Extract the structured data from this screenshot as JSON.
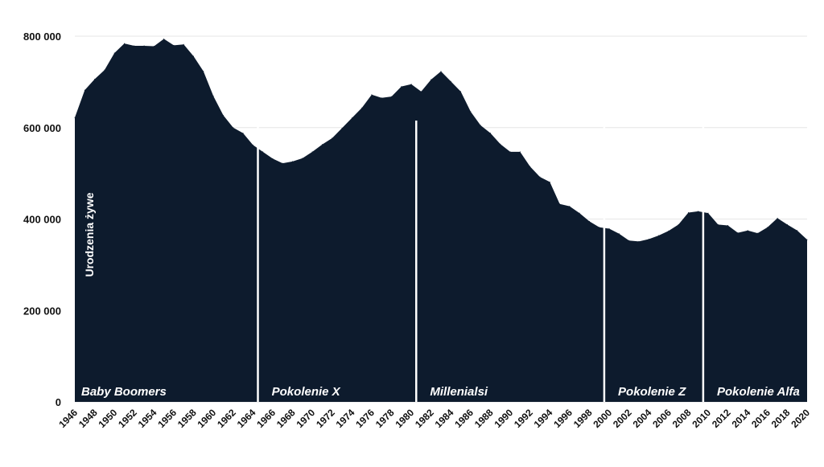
{
  "chart_data": {
    "type": "area",
    "title": "",
    "xlabel": "",
    "ylabel": "Urodzenia żywe",
    "ylim": [
      0,
      800000
    ],
    "xlim": [
      1946,
      2020
    ],
    "grid": true,
    "colors": {
      "area": "#0d1b2d",
      "grid": "#e6e6e6",
      "divider": "#ffffff",
      "text": "#111111"
    },
    "y_ticks": [
      {
        "value": 0,
        "label": "0"
      },
      {
        "value": 200000,
        "label": "200 000"
      },
      {
        "value": 400000,
        "label": "400 000"
      },
      {
        "value": 600000,
        "label": "600 000"
      },
      {
        "value": 800000,
        "label": "800 000"
      }
    ],
    "x_ticks": [
      1946,
      1948,
      1950,
      1952,
      1954,
      1956,
      1958,
      1960,
      1962,
      1964,
      1966,
      1968,
      1970,
      1972,
      1974,
      1976,
      1978,
      1980,
      1982,
      1984,
      1986,
      1988,
      1990,
      1992,
      1994,
      1996,
      1998,
      2000,
      2002,
      2004,
      2006,
      2008,
      2010,
      2012,
      2014,
      2016,
      2018,
      2020
    ],
    "x": [
      1946,
      1947,
      1948,
      1949,
      1950,
      1951,
      1952,
      1953,
      1954,
      1955,
      1956,
      1957,
      1958,
      1959,
      1960,
      1961,
      1962,
      1963,
      1964,
      1965,
      1966,
      1967,
      1968,
      1969,
      1970,
      1971,
      1972,
      1973,
      1974,
      1975,
      1976,
      1977,
      1978,
      1979,
      1980,
      1981,
      1982,
      1983,
      1984,
      1985,
      1986,
      1987,
      1988,
      1989,
      1990,
      1991,
      1992,
      1993,
      1994,
      1995,
      1996,
      1997,
      1998,
      1999,
      2000,
      2001,
      2002,
      2003,
      2004,
      2005,
      2006,
      2007,
      2008,
      2009,
      2010,
      2011,
      2012,
      2013,
      2014,
      2015,
      2016,
      2017,
      2018,
      2019,
      2020
    ],
    "values": [
      622000,
      682000,
      706000,
      726000,
      763000,
      784000,
      779000,
      779000,
      778000,
      794000,
      780000,
      782000,
      756000,
      723000,
      669000,
      627000,
      600000,
      588000,
      562000,
      547000,
      532000,
      522000,
      526000,
      533000,
      547000,
      563000,
      577000,
      599000,
      621000,
      643000,
      672000,
      665000,
      668000,
      690000,
      695000,
      679000,
      705000,
      723000,
      701000,
      679000,
      635000,
      605000,
      588000,
      564000,
      547000,
      547000,
      515000,
      492000,
      481000,
      433000,
      428000,
      413000,
      395000,
      382000,
      379000,
      368000,
      353000,
      351000,
      356000,
      364000,
      374000,
      388000,
      414000,
      417000,
      413000,
      388000,
      386000,
      370000,
      375000,
      369000,
      382000,
      402000,
      388000,
      375000,
      355000
    ],
    "generations": [
      {
        "name": "Baby Boomers",
        "start": 1946,
        "end": 1964
      },
      {
        "name": "Pokolenie X",
        "start": 1965,
        "end": 1980
      },
      {
        "name": "Millenialsi",
        "start": 1981,
        "end": 1999
      },
      {
        "name": "Pokolenie Z",
        "start": 2000,
        "end": 2009
      },
      {
        "name": "Pokolenie Alfa",
        "start": 2010,
        "end": 2020
      }
    ]
  }
}
